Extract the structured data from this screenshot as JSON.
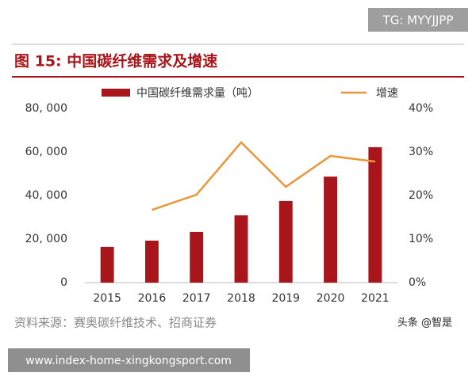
{
  "chart_data": {
    "type": "bar",
    "title": "图 15: 中国碳纤维需求及增速",
    "source": "资料来源：赛奥碳纤维技术、招商证券",
    "categories": [
      "2015",
      "2016",
      "2017",
      "2018",
      "2019",
      "2020",
      "2021"
    ],
    "series": [
      {
        "name": "中国碳纤维需求量（吨）",
        "type": "bar",
        "color": "#a8161b",
        "values": [
          16400,
          19300,
          23300,
          30900,
          37500,
          48700,
          62200
        ]
      },
      {
        "name": "增速",
        "type": "line",
        "axis": "y2",
        "color": "#e8983a",
        "values": [
          null,
          16.7,
          20.2,
          32.2,
          22.0,
          29.1,
          27.8
        ]
      }
    ],
    "ylim": [
      0,
      80000
    ],
    "yticks": [
      0,
      {
        "value": 20000,
        "label": "20, 000"
      },
      {
        "value": 40000,
        "label": "40, 000"
      },
      {
        "value": 60000,
        "label": "60, 000"
      },
      {
        "value": 80000,
        "label": "80, 000"
      }
    ],
    "y2lim": [
      0,
      40
    ],
    "y2ticks": [
      {
        "value": 0,
        "label": "0%"
      },
      {
        "value": 10,
        "label": "10%"
      },
      {
        "value": 20,
        "label": "20%"
      },
      {
        "value": 30,
        "label": "30%"
      },
      {
        "value": 40,
        "label": "40%"
      }
    ],
    "grid": false,
    "legend": "top"
  },
  "overlay": {
    "tag": "TG: MYYJJPP",
    "url": "www.index-home-xingkongsport.com",
    "watermark": "头条 @智是"
  }
}
